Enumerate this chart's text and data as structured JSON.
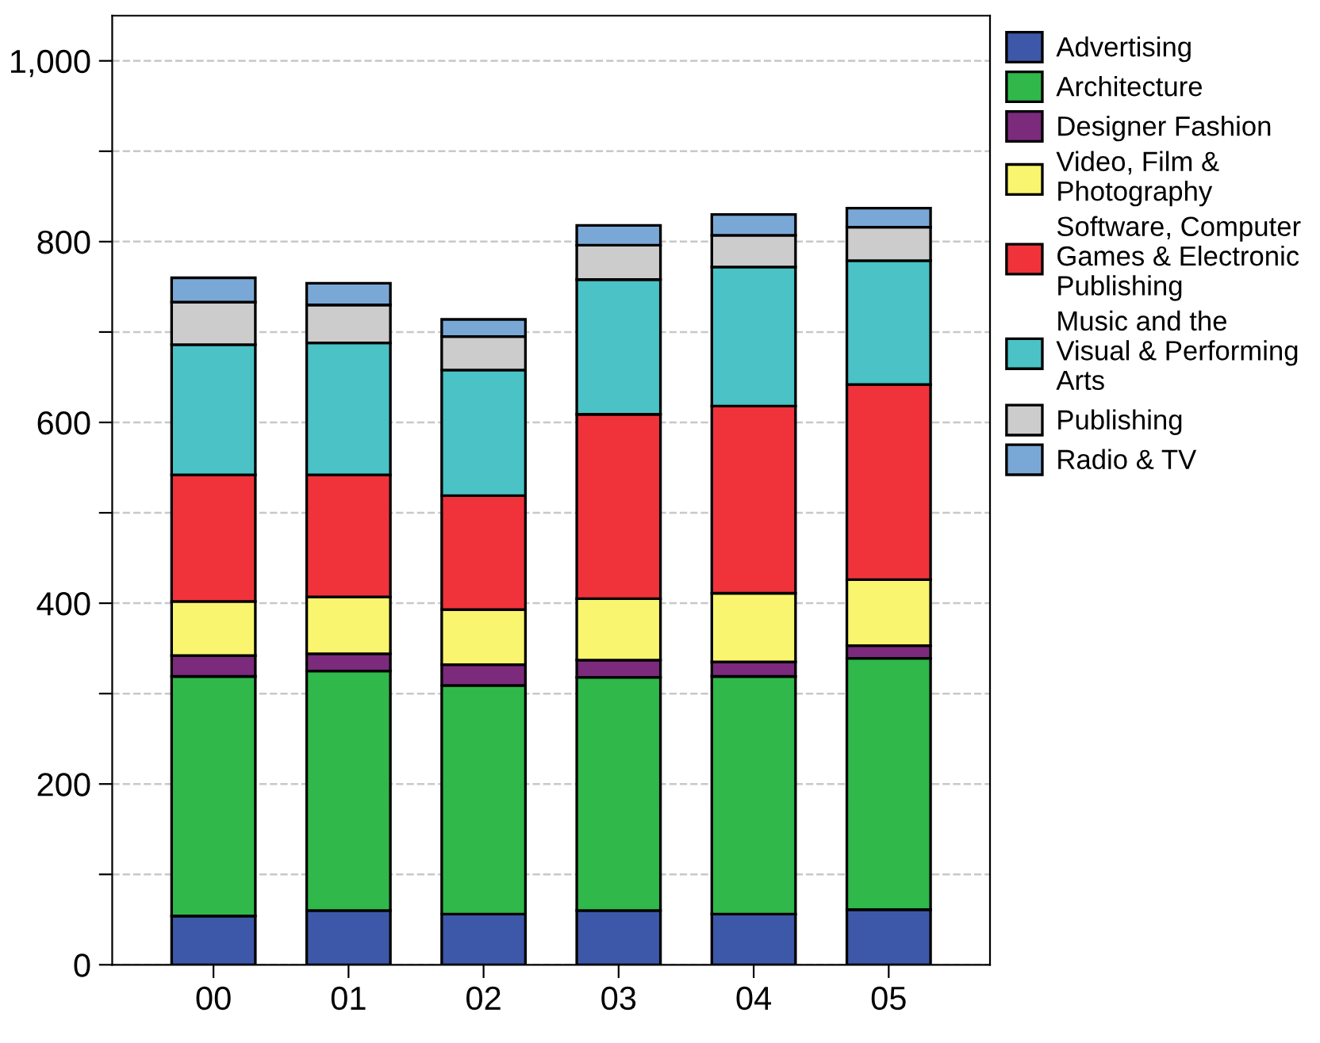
{
  "chart_data": {
    "type": "bar",
    "stacked": true,
    "categories": [
      "00",
      "01",
      "02",
      "03",
      "04",
      "05"
    ],
    "series": [
      {
        "name": "Advertising",
        "color": "#3d58a8",
        "values": [
          54,
          60,
          56,
          60,
          56,
          61
        ]
      },
      {
        "name": "Architecture",
        "color": "#30b84a",
        "values": [
          265,
          265,
          253,
          258,
          263,
          278
        ]
      },
      {
        "name": "Designer Fashion",
        "color": "#7b2a7c",
        "values": [
          23,
          19,
          23,
          19,
          16,
          14
        ]
      },
      {
        "name": "Video, Film & Photography",
        "color": "#f9f56e",
        "values": [
          60,
          63,
          61,
          68,
          76,
          73
        ]
      },
      {
        "name": "Software, Computer Games & Electronic Publishing",
        "color": "#f0333b",
        "values": [
          140,
          135,
          126,
          204,
          207,
          216
        ]
      },
      {
        "name": "Music and the Visual & Performing Arts",
        "color": "#4ac2c6",
        "values": [
          144,
          146,
          139,
          149,
          154,
          137
        ]
      },
      {
        "name": "Publishing",
        "color": "#cccccc",
        "values": [
          47,
          42,
          37,
          38,
          35,
          37
        ]
      },
      {
        "name": "Radio & TV",
        "color": "#7aa8d6",
        "values": [
          27,
          24,
          19,
          22,
          23,
          21
        ]
      }
    ],
    "ylim": [
      0,
      1050
    ],
    "yticks": [
      0,
      {
        "value": 100,
        "label": null
      },
      200,
      {
        "value": 300,
        "label": null
      },
      400,
      {
        "value": 500,
        "label": null
      },
      600,
      {
        "value": 700,
        "label": null
      },
      800,
      {
        "value": 900,
        "label": null
      },
      {
        "value": 1000,
        "label": "1,000"
      }
    ],
    "grid": "y",
    "legend": "right"
  }
}
